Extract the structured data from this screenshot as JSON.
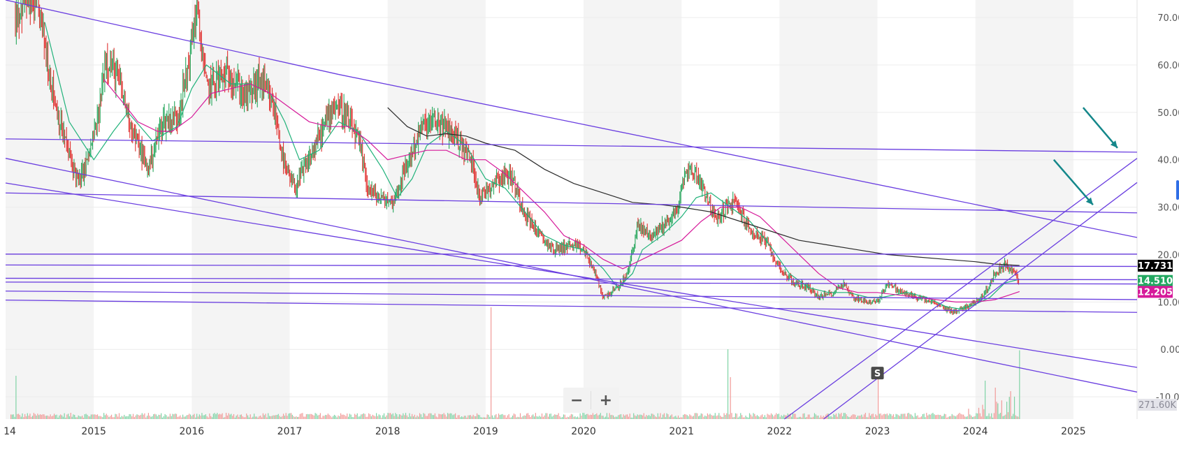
{
  "chart_data": {
    "type": "candlestick",
    "x_tick_labels": [
      "14",
      "2015",
      "2016",
      "2017",
      "2018",
      "2019",
      "2020",
      "2021",
      "2022",
      "2023",
      "2024",
      "2025"
    ],
    "y_tick_labels": [
      "-10.000",
      "0.000",
      "10.000",
      "20.000",
      "30.000",
      "40.000",
      "50.000",
      "60.000",
      "70.000"
    ],
    "y_ticks": [
      -10,
      0,
      10,
      20,
      30,
      40,
      50,
      60,
      70
    ],
    "xlim": [
      2014.1,
      2025.65
    ],
    "ylim": [
      -14.7,
      73.7
    ],
    "grid": "alternating year bands, horizontal gridlines",
    "price_labels": [
      {
        "text": "17.731",
        "value": 17.731,
        "color": "#000000"
      },
      {
        "text": "14.510",
        "value": 14.51,
        "color": "#22a861"
      },
      {
        "text": "12.205",
        "value": 12.205,
        "color": "#d61a9a"
      }
    ],
    "volume_label": {
      "text": "271.60K",
      "color": "#8a8a96"
    },
    "marker": {
      "text": "S",
      "x": 2023.0,
      "value": -5
    },
    "up_color": "#26a65b",
    "down_color": "#e0312f",
    "price_path": [
      [
        2014.2,
        70
      ],
      [
        2014.3,
        74
      ],
      [
        2014.45,
        71
      ],
      [
        2014.55,
        58
      ],
      [
        2014.65,
        48
      ],
      [
        2014.75,
        41
      ],
      [
        2014.85,
        35
      ],
      [
        2014.95,
        41
      ],
      [
        2015.05,
        49
      ],
      [
        2015.12,
        62
      ],
      [
        2015.25,
        57
      ],
      [
        2015.4,
        46
      ],
      [
        2015.55,
        38
      ],
      [
        2015.7,
        48
      ],
      [
        2015.85,
        49
      ],
      [
        2015.95,
        58
      ],
      [
        2016.05,
        72
      ],
      [
        2016.15,
        55
      ],
      [
        2016.25,
        57
      ],
      [
        2016.4,
        58
      ],
      [
        2016.55,
        53
      ],
      [
        2016.7,
        57
      ],
      [
        2016.85,
        50
      ],
      [
        2016.95,
        38
      ],
      [
        2017.05,
        34
      ],
      [
        2017.2,
        40
      ],
      [
        2017.35,
        47
      ],
      [
        2017.45,
        52
      ],
      [
        2017.55,
        50
      ],
      [
        2017.7,
        44
      ],
      [
        2017.8,
        34
      ],
      [
        2017.9,
        32
      ],
      [
        2018.05,
        31
      ],
      [
        2018.2,
        39
      ],
      [
        2018.35,
        47
      ],
      [
        2018.5,
        48
      ],
      [
        2018.7,
        45
      ],
      [
        2018.85,
        40
      ],
      [
        2018.95,
        32
      ],
      [
        2019.1,
        36
      ],
      [
        2019.25,
        37
      ],
      [
        2019.4,
        29
      ],
      [
        2019.55,
        24
      ],
      [
        2019.7,
        21
      ],
      [
        2019.85,
        22
      ],
      [
        2020.0,
        21
      ],
      [
        2020.1,
        17
      ],
      [
        2020.2,
        11
      ],
      [
        2020.35,
        13
      ],
      [
        2020.45,
        16
      ],
      [
        2020.55,
        26
      ],
      [
        2020.7,
        24
      ],
      [
        2020.85,
        27
      ],
      [
        2020.95,
        29
      ],
      [
        2021.05,
        38
      ],
      [
        2021.15,
        37
      ],
      [
        2021.25,
        33
      ],
      [
        2021.35,
        27
      ],
      [
        2021.45,
        30
      ],
      [
        2021.55,
        31
      ],
      [
        2021.7,
        25
      ],
      [
        2021.85,
        23
      ],
      [
        2021.95,
        19
      ],
      [
        2022.05,
        16
      ],
      [
        2022.15,
        14
      ],
      [
        2022.3,
        13
      ],
      [
        2022.4,
        11
      ],
      [
        2022.55,
        12
      ],
      [
        2022.65,
        14
      ],
      [
        2022.75,
        11
      ],
      [
        2022.9,
        10
      ],
      [
        2023.0,
        10
      ],
      [
        2023.1,
        14
      ],
      [
        2023.25,
        12
      ],
      [
        2023.4,
        11
      ],
      [
        2023.55,
        10
      ],
      [
        2023.7,
        8.5
      ],
      [
        2023.8,
        8
      ],
      [
        2023.9,
        9
      ],
      [
        2024.0,
        10
      ],
      [
        2024.1,
        12
      ],
      [
        2024.2,
        16
      ],
      [
        2024.3,
        18
      ],
      [
        2024.4,
        16
      ],
      [
        2024.45,
        14.5
      ]
    ],
    "series": [
      {
        "name": "",
        "color": "#20b27a",
        "points": [
          [
            2014.5,
            69
          ],
          [
            2014.75,
            48
          ],
          [
            2015.0,
            40
          ],
          [
            2015.2,
            46
          ],
          [
            2015.35,
            50
          ],
          [
            2015.6,
            44
          ],
          [
            2015.85,
            47
          ],
          [
            2016.0,
            55
          ],
          [
            2016.15,
            60
          ],
          [
            2016.4,
            56
          ],
          [
            2016.6,
            56
          ],
          [
            2016.8,
            54
          ],
          [
            2016.95,
            48
          ],
          [
            2017.1,
            40
          ],
          [
            2017.3,
            42
          ],
          [
            2017.5,
            48
          ],
          [
            2017.7,
            46
          ],
          [
            2017.95,
            38
          ],
          [
            2018.1,
            32
          ],
          [
            2018.25,
            36
          ],
          [
            2018.4,
            43
          ],
          [
            2018.6,
            46
          ],
          [
            2018.8,
            43
          ],
          [
            2019.0,
            36
          ],
          [
            2019.2,
            34
          ],
          [
            2019.4,
            29
          ],
          [
            2019.6,
            24
          ],
          [
            2019.8,
            22
          ],
          [
            2020.0,
            21
          ],
          [
            2020.2,
            17
          ],
          [
            2020.35,
            13
          ],
          [
            2020.5,
            16
          ],
          [
            2020.6,
            21
          ],
          [
            2020.8,
            24
          ],
          [
            2021.0,
            28
          ],
          [
            2021.15,
            32
          ],
          [
            2021.3,
            33
          ],
          [
            2021.5,
            30
          ],
          [
            2021.7,
            27
          ],
          [
            2021.9,
            22
          ],
          [
            2022.1,
            16
          ],
          [
            2022.3,
            13
          ],
          [
            2022.5,
            12
          ],
          [
            2022.7,
            12
          ],
          [
            2022.9,
            11
          ],
          [
            2023.05,
            11
          ],
          [
            2023.3,
            12
          ],
          [
            2023.5,
            11
          ],
          [
            2023.7,
            9
          ],
          [
            2023.85,
            8.5
          ],
          [
            2024.0,
            9.5
          ],
          [
            2024.15,
            11
          ],
          [
            2024.3,
            14
          ],
          [
            2024.45,
            14.8
          ]
        ]
      },
      {
        "name": "",
        "color": "#d61a9a",
        "points": [
          [
            2015.1,
            57
          ],
          [
            2015.3,
            52
          ],
          [
            2015.45,
            48
          ],
          [
            2015.65,
            46
          ],
          [
            2015.8,
            46
          ],
          [
            2016.0,
            49
          ],
          [
            2016.2,
            54
          ],
          [
            2016.4,
            55
          ],
          [
            2016.6,
            56
          ],
          [
            2016.8,
            54
          ],
          [
            2017.0,
            51
          ],
          [
            2017.2,
            48
          ],
          [
            2017.4,
            47
          ],
          [
            2017.6,
            47
          ],
          [
            2017.8,
            44
          ],
          [
            2018.0,
            40
          ],
          [
            2018.2,
            41
          ],
          [
            2018.4,
            42
          ],
          [
            2018.6,
            42
          ],
          [
            2018.8,
            40
          ],
          [
            2019.0,
            40
          ],
          [
            2019.2,
            37
          ],
          [
            2019.4,
            33
          ],
          [
            2019.6,
            29
          ],
          [
            2019.8,
            24
          ],
          [
            2020.0,
            22
          ],
          [
            2020.2,
            19
          ],
          [
            2020.4,
            17
          ],
          [
            2020.6,
            19
          ],
          [
            2020.8,
            21
          ],
          [
            2021.0,
            23
          ],
          [
            2021.2,
            27
          ],
          [
            2021.4,
            30
          ],
          [
            2021.6,
            30
          ],
          [
            2021.8,
            28
          ],
          [
            2022.0,
            24
          ],
          [
            2022.2,
            20
          ],
          [
            2022.4,
            16
          ],
          [
            2022.6,
            13
          ],
          [
            2022.8,
            12
          ],
          [
            2023.0,
            12
          ],
          [
            2023.2,
            11.5
          ],
          [
            2023.4,
            11
          ],
          [
            2023.6,
            10.5
          ],
          [
            2023.8,
            10
          ],
          [
            2024.0,
            10
          ],
          [
            2024.2,
            10.5
          ],
          [
            2024.35,
            11.5
          ],
          [
            2024.45,
            12.2
          ]
        ]
      },
      {
        "name": "",
        "color": "#2b2b2b",
        "points": [
          [
            2018.0,
            51
          ],
          [
            2018.2,
            47
          ],
          [
            2018.4,
            45
          ],
          [
            2018.6,
            45.5
          ],
          [
            2018.8,
            45
          ],
          [
            2019.0,
            43.5
          ],
          [
            2019.3,
            42
          ],
          [
            2019.6,
            38
          ],
          [
            2019.9,
            35
          ],
          [
            2020.2,
            33
          ],
          [
            2020.5,
            31
          ],
          [
            2020.8,
            30.5
          ],
          [
            2021.0,
            30
          ],
          [
            2021.3,
            29
          ],
          [
            2021.6,
            27
          ],
          [
            2021.9,
            25
          ],
          [
            2022.2,
            23
          ],
          [
            2022.5,
            22
          ],
          [
            2022.8,
            21
          ],
          [
            2023.1,
            20
          ],
          [
            2023.4,
            19.5
          ],
          [
            2023.7,
            19
          ],
          [
            2024.0,
            18.5
          ],
          [
            2024.2,
            18
          ],
          [
            2024.45,
            17.7
          ]
        ]
      }
    ],
    "trendlines": [
      {
        "from": [
          2014.1,
          73.7
        ],
        "to": [
          2017.5,
          58
        ]
      },
      {
        "from": [
          2017.5,
          58
        ],
        "to": [
          2025.65,
          23.6
        ]
      },
      {
        "from": [
          2014.1,
          40.3
        ],
        "to": [
          2025.65,
          -9.0
        ]
      },
      {
        "from": [
          2014.1,
          35.1
        ],
        "to": [
          2025.65,
          -3.8
        ]
      },
      {
        "from": [
          2014.1,
          44.4
        ],
        "to": [
          2025.65,
          41.6
        ]
      },
      {
        "from": [
          2014.1,
          33.0
        ],
        "to": [
          2025.65,
          28.8
        ]
      },
      {
        "from": [
          2014.1,
          20.1
        ],
        "to": [
          2025.65,
          20.1
        ]
      },
      {
        "from": [
          2014.1,
          17.8
        ],
        "to": [
          2025.65,
          17.5
        ]
      },
      {
        "from": [
          2014.1,
          15.0
        ],
        "to": [
          2025.65,
          14.7
        ]
      },
      {
        "from": [
          2014.1,
          14.2
        ],
        "to": [
          2025.65,
          13.8
        ]
      },
      {
        "from": [
          2014.1,
          12.3
        ],
        "to": [
          2025.65,
          10.5
        ]
      },
      {
        "from": [
          2014.1,
          10.4
        ],
        "to": [
          2025.65,
          7.8
        ]
      },
      {
        "from": [
          2022.05,
          -14.7
        ],
        "to": [
          2025.65,
          40.3
        ]
      },
      {
        "from": [
          2022.45,
          -14.7
        ],
        "to": [
          2025.65,
          35.2
        ]
      }
    ],
    "arrows": [
      {
        "from": [
          2025.1,
          51
        ],
        "to": [
          2025.45,
          42.5
        ]
      },
      {
        "from": [
          2024.8,
          40
        ],
        "to": [
          2025.2,
          30.5
        ]
      }
    ]
  },
  "zoom": {
    "minus": "−",
    "plus": "+"
  }
}
